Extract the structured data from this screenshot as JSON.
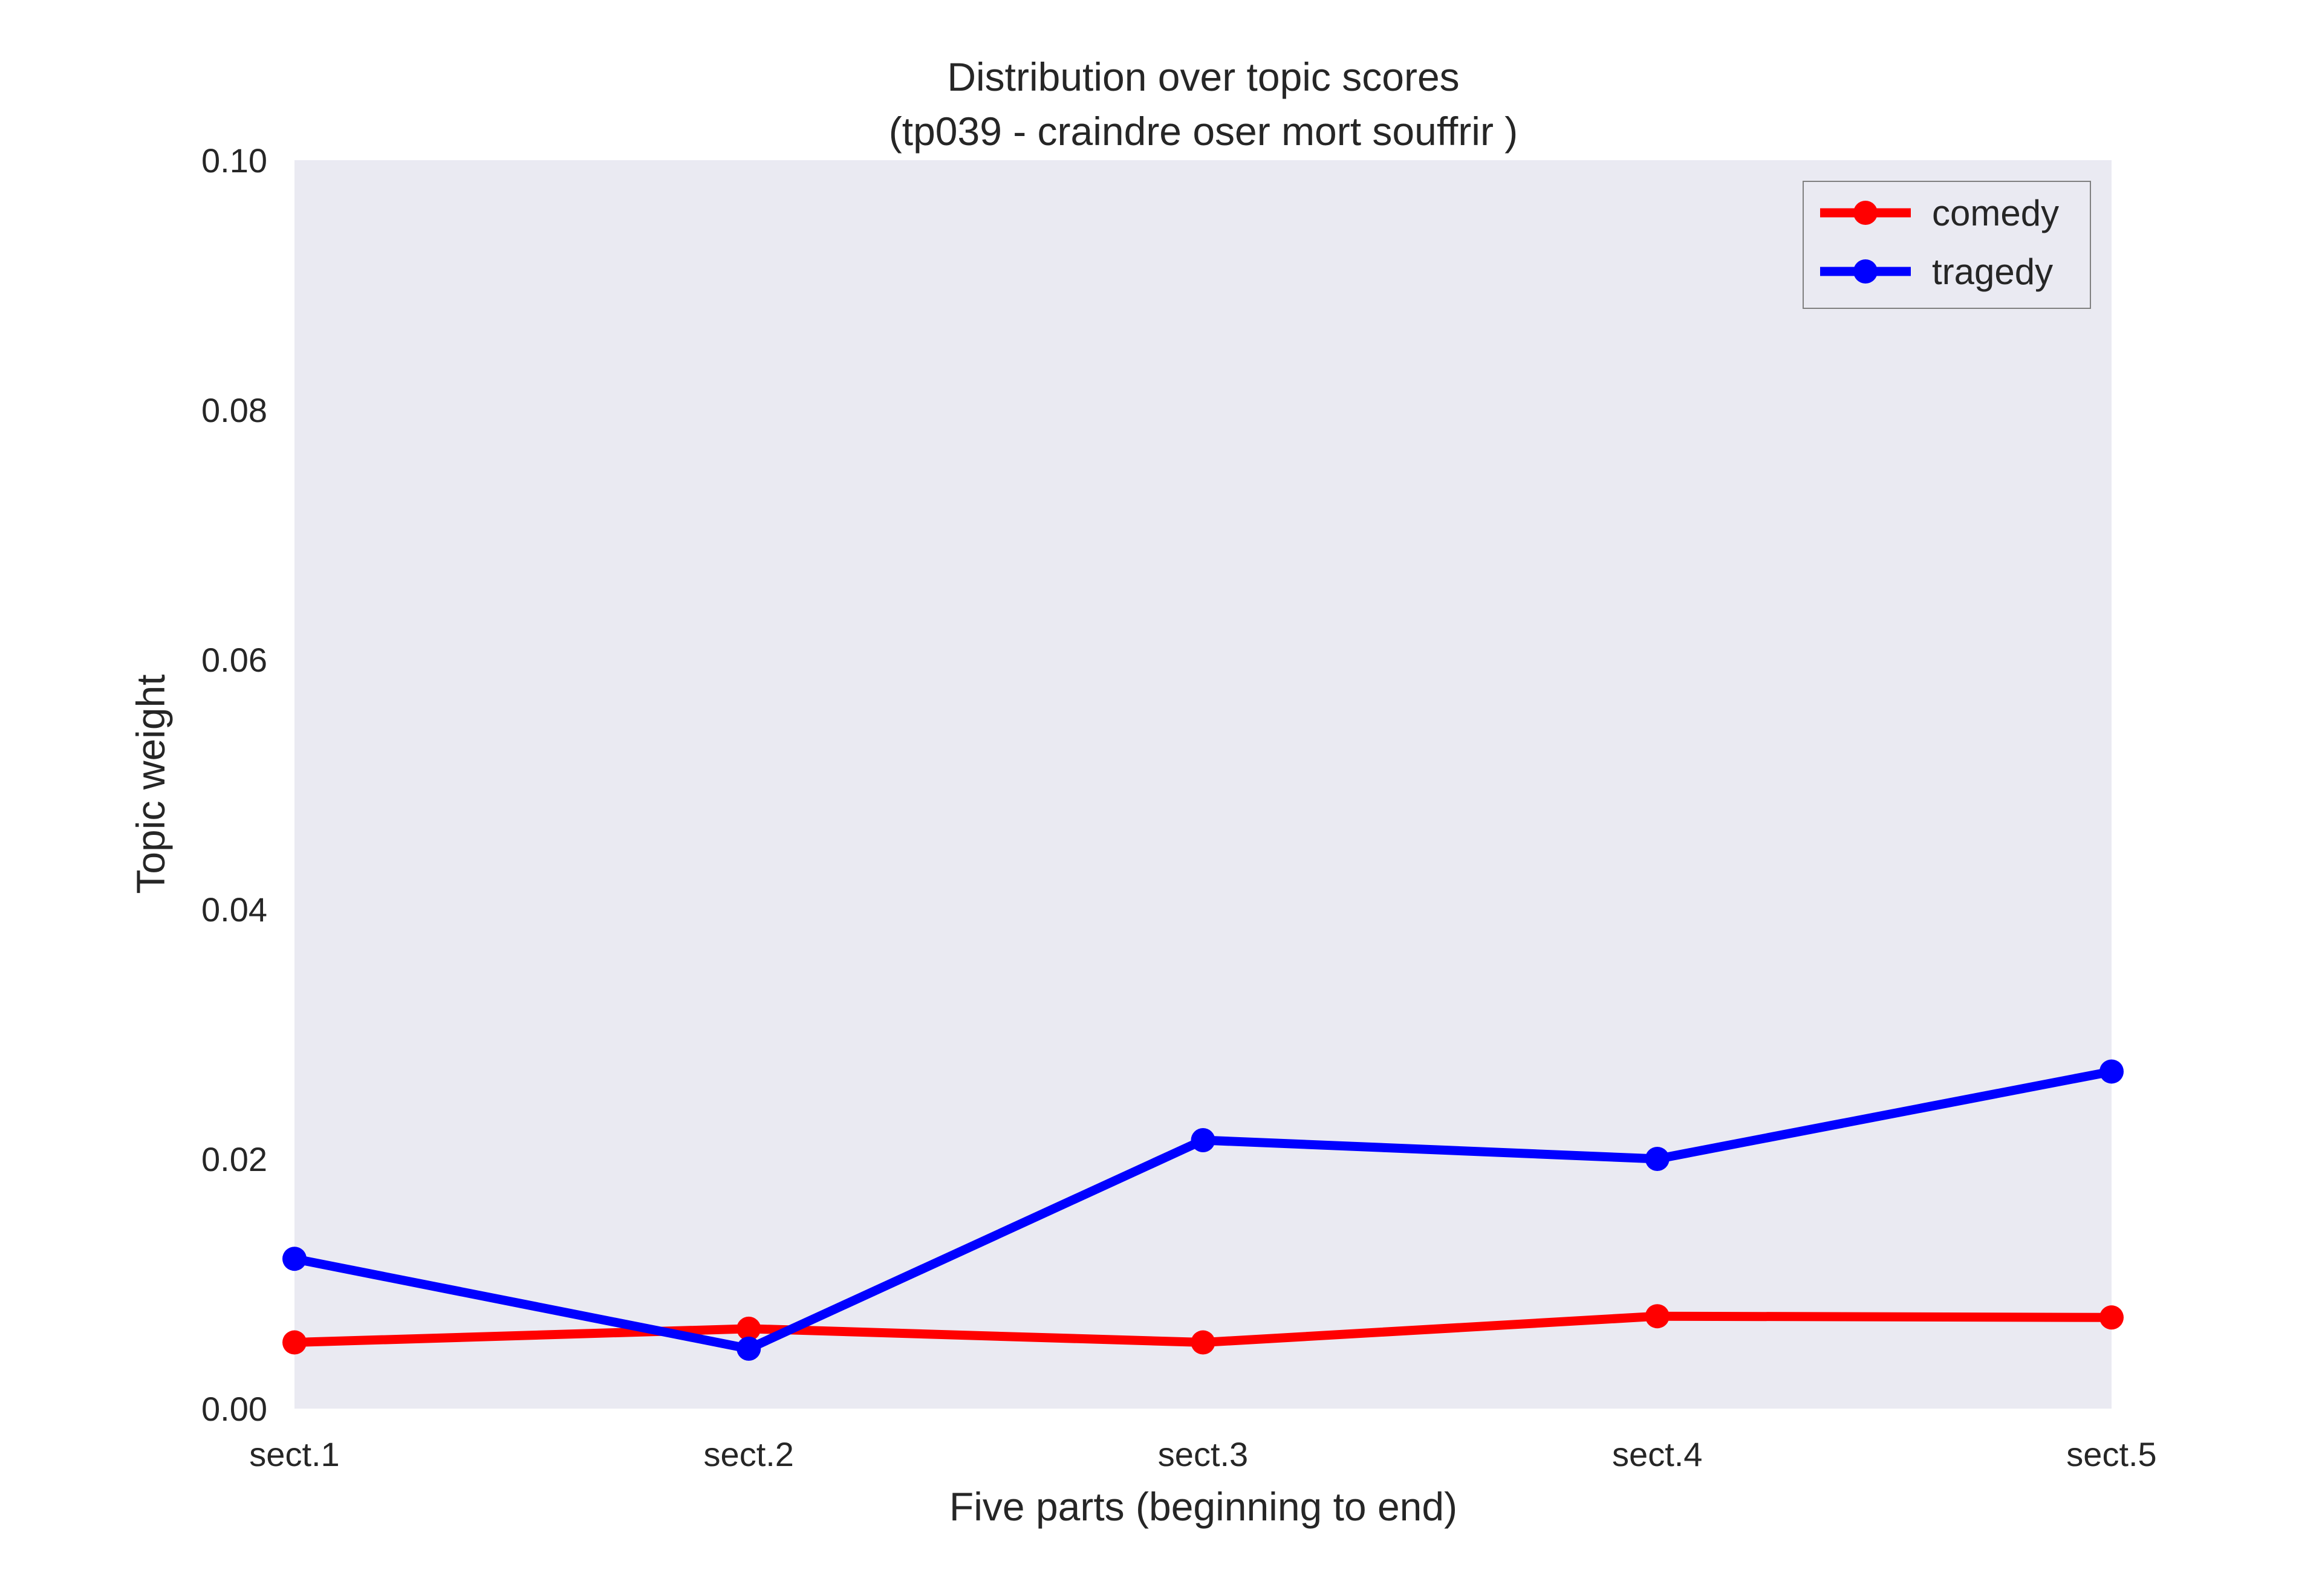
{
  "chart_data": {
    "type": "line",
    "title": "Distribution over topic scores",
    "subtitle": "(tp039 - craindre oser mort souffrir )",
    "xlabel": "Five parts (beginning to end)",
    "ylabel": "Topic weight",
    "categories": [
      "sect.1",
      "sect.2",
      "sect.3",
      "sect.4",
      "sect.5"
    ],
    "ylim": [
      0.0,
      0.1
    ],
    "yticks": [
      "0.00",
      "0.02",
      "0.04",
      "0.06",
      "0.08",
      "0.10"
    ],
    "grid": false,
    "legend_position": "top-right",
    "plot_background": "#EAEAF2",
    "series": [
      {
        "name": "comedy",
        "color": "#FF0000",
        "values": [
          0.0053,
          0.0064,
          0.0053,
          0.0074,
          0.0073
        ]
      },
      {
        "name": "tragedy",
        "color": "#0000FF",
        "values": [
          0.012,
          0.0048,
          0.0215,
          0.02,
          0.027
        ]
      }
    ]
  }
}
